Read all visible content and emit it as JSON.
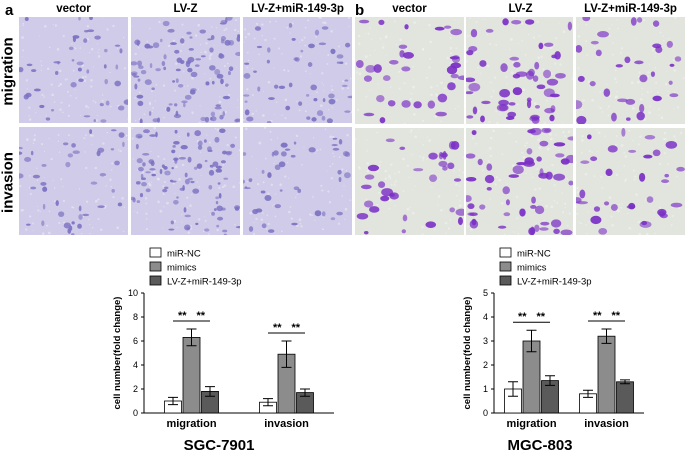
{
  "figure": {
    "panel_a": {
      "letter": "a",
      "columns": [
        "vector",
        "LV-Z",
        "LV-Z+miR-149-3p"
      ],
      "rows": [
        "migration",
        "invasion"
      ],
      "stain_color": "#7b71c2",
      "background_color": "#cfcbe8"
    },
    "panel_b": {
      "letter": "b",
      "columns": [
        "vector",
        "LV-Z",
        "LV-Z+miR-149-3p"
      ],
      "rows": [
        "migration",
        "invasion"
      ],
      "stain_color": "#7a2ec6",
      "background_color": "#e2e4de"
    }
  },
  "chart_data": [
    {
      "type": "bar",
      "title": "SGC-7901",
      "ylabel": "cell number(fold change)",
      "xlabel": "",
      "categories": [
        "migration",
        "invasion"
      ],
      "ylim": [
        0,
        10
      ],
      "yticks": [
        "0",
        "2",
        "4",
        "6",
        "8",
        "10"
      ],
      "series": [
        {
          "name": "miR-NC",
          "values": [
            1.0,
            0.9
          ],
          "errors": [
            0.3,
            0.3
          ],
          "color": "#ffffff"
        },
        {
          "name": "mimics",
          "values": [
            6.3,
            4.9
          ],
          "errors": [
            0.7,
            1.1
          ],
          "color": "#8c8c8c"
        },
        {
          "name": "LV-Z+miR-149-3p",
          "values": [
            1.8,
            1.7
          ],
          "errors": [
            0.4,
            0.3
          ],
          "color": "#5a5a5a"
        }
      ],
      "significance": [
        "**",
        "**",
        "**",
        "**"
      ],
      "legend_position": "top"
    },
    {
      "type": "bar",
      "title": "MGC-803",
      "ylabel": "cell number(fold change)",
      "xlabel": "",
      "categories": [
        "migration",
        "invasion"
      ],
      "ylim": [
        0,
        5
      ],
      "yticks": [
        "0",
        "1",
        "2",
        "3",
        "4",
        "5"
      ],
      "series": [
        {
          "name": "miR-NC",
          "values": [
            1.0,
            0.8
          ],
          "errors": [
            0.3,
            0.15
          ],
          "color": "#ffffff"
        },
        {
          "name": "mimics",
          "values": [
            3.0,
            3.2
          ],
          "errors": [
            0.45,
            0.3
          ],
          "color": "#8c8c8c"
        },
        {
          "name": "LV-Z+miR-149-3p",
          "values": [
            1.35,
            1.3
          ],
          "errors": [
            0.2,
            0.08
          ],
          "color": "#5a5a5a"
        }
      ],
      "significance": [
        "**",
        "**",
        "**",
        "**"
      ],
      "legend_position": "top"
    }
  ]
}
